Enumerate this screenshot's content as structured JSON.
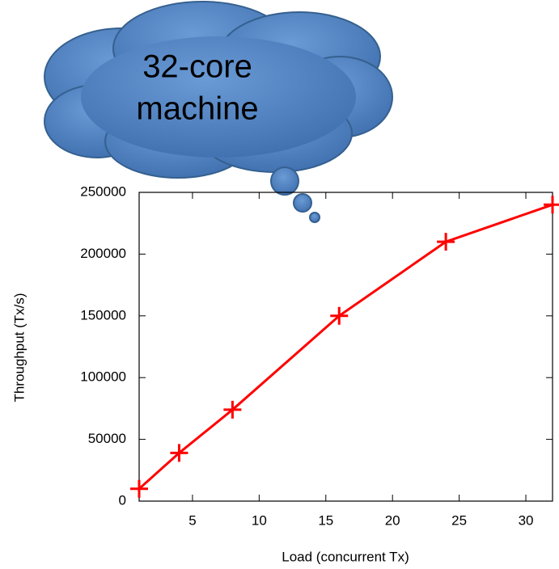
{
  "chart_data": {
    "type": "line",
    "annotation": [
      "32-core",
      "machine"
    ],
    "x_label": "Load (concurrent Tx)",
    "y_label": "Throughput (Tx/s)",
    "x": [
      1,
      4,
      8,
      16,
      24,
      32
    ],
    "series": [
      {
        "color": "#ff0000",
        "values": [
          10000,
          39000,
          74000,
          150000,
          210000,
          240000
        ]
      }
    ],
    "xlim": [
      1,
      32
    ],
    "xticks": [
      5,
      10,
      15,
      20,
      25,
      30
    ],
    "ylim": [
      0,
      250000
    ],
    "yticks": [
      0,
      50000,
      100000,
      150000,
      200000,
      250000
    ],
    "grid": false
  }
}
